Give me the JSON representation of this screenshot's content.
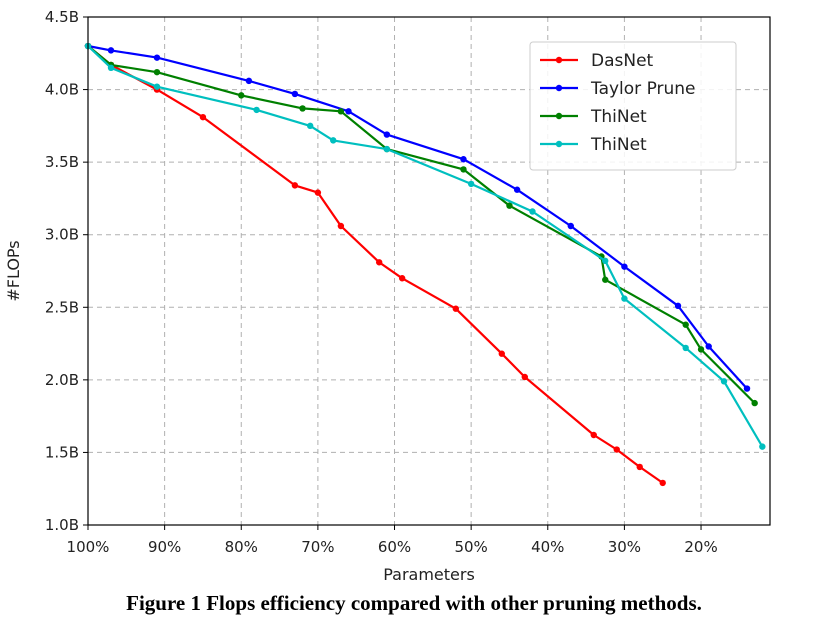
{
  "caption": "Figure 1 Flops efficiency compared with other pruning methods.",
  "chart_data": {
    "type": "line",
    "title": "",
    "xlabel": "Parameters",
    "ylabel": "#FLOPs",
    "xlim": [
      100,
      11
    ],
    "ylim": [
      1.0,
      4.5
    ],
    "x_reversed": true,
    "x_ticks": [
      100,
      90,
      80,
      70,
      60,
      50,
      40,
      30,
      20
    ],
    "x_tick_labels": [
      "100%",
      "90%",
      "80%",
      "70%",
      "60%",
      "50%",
      "40%",
      "30%",
      "20%"
    ],
    "y_ticks": [
      1.0,
      1.5,
      2.0,
      2.5,
      3.0,
      3.5,
      4.0,
      4.5
    ],
    "y_tick_labels": [
      "1.0B",
      "1.5B",
      "2.0B",
      "2.5B",
      "3.0B",
      "3.5B",
      "4.0B",
      "4.5B"
    ],
    "grid": true,
    "legend_position": "top-right",
    "series": [
      {
        "name": "DasNet",
        "color": "#ff0000",
        "x": [
          100,
          97,
          91,
          85,
          73,
          70,
          67,
          62,
          59,
          52,
          46,
          43,
          34,
          31,
          28,
          25
        ],
        "y": [
          4.3,
          4.17,
          4.0,
          3.81,
          3.34,
          3.29,
          3.06,
          2.81,
          2.7,
          2.49,
          2.18,
          2.02,
          1.62,
          1.52,
          1.4,
          1.29
        ]
      },
      {
        "name": "Taylor Prune",
        "color": "#0000ff",
        "x": [
          100,
          97,
          91,
          79,
          73,
          66,
          61,
          51,
          44,
          37,
          30,
          23,
          19,
          14
        ],
        "y": [
          4.3,
          4.27,
          4.22,
          4.06,
          3.97,
          3.85,
          3.69,
          3.52,
          3.31,
          3.06,
          2.78,
          2.51,
          2.23,
          1.94
        ]
      },
      {
        "name": "ThiNet",
        "color": "#008000",
        "x": [
          100,
          97,
          91,
          80,
          72,
          67,
          61,
          51,
          45,
          33,
          32.5,
          22,
          20,
          13
        ],
        "y": [
          4.3,
          4.17,
          4.12,
          3.96,
          3.87,
          3.85,
          3.59,
          3.45,
          3.2,
          2.85,
          2.69,
          2.38,
          2.21,
          1.84
        ]
      },
      {
        "name": "ThiNet",
        "color": "#00bfbf",
        "x": [
          100,
          97,
          91,
          78,
          71,
          68,
          61,
          50,
          42,
          32.5,
          30,
          22,
          17,
          12
        ],
        "y": [
          4.3,
          4.15,
          4.02,
          3.86,
          3.75,
          3.65,
          3.59,
          3.35,
          3.16,
          2.82,
          2.56,
          2.22,
          1.99,
          1.54
        ]
      }
    ]
  }
}
